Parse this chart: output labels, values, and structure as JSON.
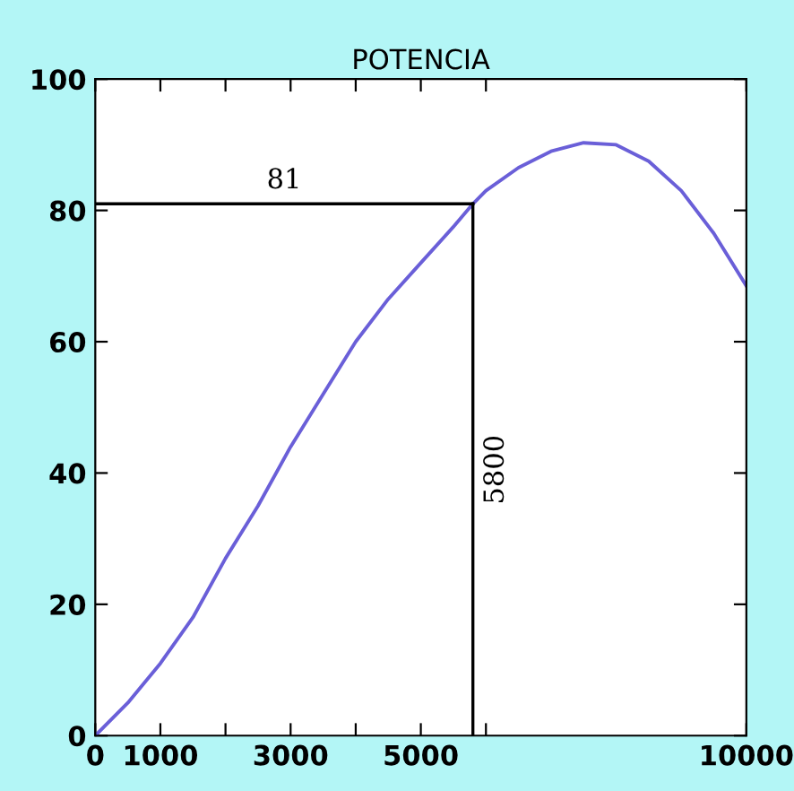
{
  "chart_data": {
    "type": "line",
    "title": "POTENCIA",
    "x": [
      0,
      500,
      1000,
      1500,
      2000,
      2500,
      3000,
      3500,
      4000,
      4500,
      5000,
      5500,
      5800,
      6000,
      6500,
      7000,
      7500,
      8000,
      8500,
      9000,
      9500,
      10000
    ],
    "series": [
      {
        "color": "#6a5fd8",
        "values": [
          0,
          5,
          11,
          18,
          27,
          35,
          44,
          52,
          60,
          66.5,
          72,
          77.5,
          81,
          83,
          86.5,
          89,
          90.3,
          90,
          87.5,
          83,
          76.5,
          68.5
        ]
      }
    ],
    "xlim": [
      0,
      10000
    ],
    "ylim": [
      0,
      100
    ],
    "xticks": [
      0,
      1000,
      {
        "value": 2000,
        "label": null
      },
      3000,
      {
        "value": 4000,
        "label": null
      },
      5000,
      {
        "value": 6000,
        "label": null
      },
      10000
    ],
    "yticks": [
      0,
      20,
      40,
      60,
      80,
      100
    ],
    "ref_lines": [
      {
        "axis": "y",
        "value": 81,
        "label": "81",
        "color": "#000000"
      },
      {
        "axis": "x",
        "value": 5800,
        "label": "5800",
        "color": "#000000"
      }
    ],
    "grid": false,
    "legend": false,
    "marker": "none",
    "line_style": "solid"
  }
}
